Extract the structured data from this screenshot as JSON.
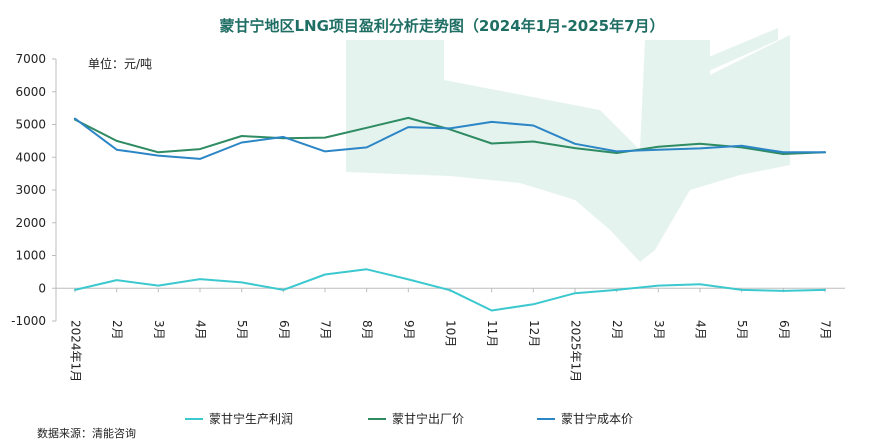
{
  "chart_data": {
    "type": "line",
    "title": "蒙甘宁地区LNG项目盈利分析走势图（2024年1月-2025年7月）",
    "unit_label": "单位：元/吨",
    "source": "数据来源：清能咨询",
    "ylim": [
      -1000,
      7000
    ],
    "yticks": [
      -1000,
      0,
      1000,
      2000,
      3000,
      4000,
      5000,
      6000,
      7000
    ],
    "ytick_labels": [
      "-1000",
      "0",
      "1000",
      "2000",
      "3000",
      "4000",
      "5000",
      "6000",
      "7000"
    ],
    "categories": [
      "2024年1月",
      "2月",
      "3月",
      "4月",
      "5月",
      "6月",
      "7月",
      "8月",
      "9月",
      "10月",
      "11月",
      "12月",
      "2025年1月",
      "2月",
      "3月",
      "4月",
      "5月",
      "6月",
      "7月"
    ],
    "legend_position": "bottom",
    "grid": false,
    "series": [
      {
        "name": "蒙甘宁生产利润",
        "color": "#3cc8cf",
        "values": [
          -50,
          250,
          80,
          280,
          180,
          -50,
          420,
          580,
          270,
          -60,
          -680,
          -490,
          -150,
          -50,
          80,
          120,
          -50,
          -80,
          -50
        ]
      },
      {
        "name": "蒙甘宁出厂价",
        "color": "#2e8b62",
        "values": [
          5150,
          4500,
          4150,
          4250,
          4650,
          4580,
          4600,
          4900,
          5200,
          4850,
          4420,
          4480,
          4280,
          4130,
          4320,
          4410,
          4300,
          4100,
          4150
        ]
      },
      {
        "name": "蒙甘宁成本价",
        "color": "#2c86c6",
        "values": [
          5180,
          4230,
          4050,
          3950,
          4450,
          4620,
          4180,
          4300,
          4920,
          4880,
          5080,
          4970,
          4410,
          4180,
          4230,
          4270,
          4350,
          4150,
          4150
        ]
      }
    ],
    "colors": {
      "title": "#1f6e64",
      "watermark": "#e5f3ef",
      "axis": "#bdbdbd"
    }
  }
}
